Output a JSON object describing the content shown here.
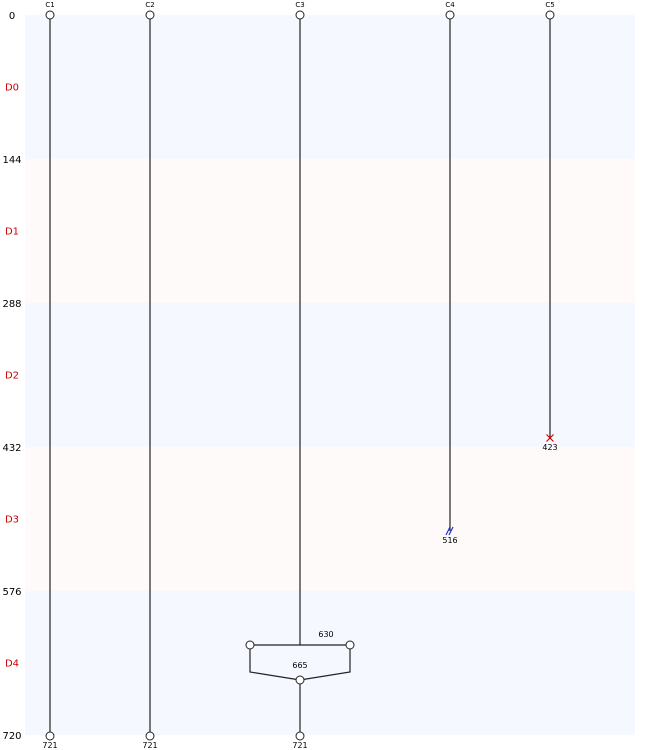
{
  "colors": {
    "band_even": "#f6f8ff",
    "band_odd": "#fffafa",
    "line": "#222222",
    "band_label": "#cc0000",
    "node_fill": "#ffffff",
    "terminate_mark": "#dd0000",
    "break_mark": "#1f2fd6"
  },
  "y_axis": {
    "ticks": [
      {
        "value": 0,
        "label": "0"
      },
      {
        "value": 144,
        "label": "144"
      },
      {
        "value": 288,
        "label": "288"
      },
      {
        "value": 432,
        "label": "432"
      },
      {
        "value": 576,
        "label": "576"
      },
      {
        "value": 720,
        "label": "720"
      }
    ]
  },
  "bands": [
    {
      "label": "D0",
      "start": 0,
      "end": 144
    },
    {
      "label": "D1",
      "start": 144,
      "end": 288
    },
    {
      "label": "D2",
      "start": 288,
      "end": 432
    },
    {
      "label": "D3",
      "start": 432,
      "end": 576
    },
    {
      "label": "D4",
      "start": 576,
      "end": 720
    }
  ],
  "columns": [
    {
      "id": "C1",
      "label": "C1",
      "start": 0,
      "end": 721,
      "end_label": "721",
      "end_type": "node"
    },
    {
      "id": "C2",
      "label": "C2",
      "start": 0,
      "end": 721,
      "end_label": "721",
      "end_type": "node"
    },
    {
      "id": "C3",
      "label": "C3",
      "start": 0,
      "end": 721,
      "end_label": "721",
      "end_type": "node"
    },
    {
      "id": "C4",
      "label": "C4",
      "start": 0,
      "end": 516,
      "end_label": "516",
      "end_type": "break"
    },
    {
      "id": "C5",
      "label": "C5",
      "start": 0,
      "end": 423,
      "end_label": "423",
      "end_type": "terminate"
    }
  ],
  "branch": {
    "column": "C3",
    "split_at": 630,
    "split_label": "630",
    "merge_at": 665,
    "merge_label": "665"
  }
}
